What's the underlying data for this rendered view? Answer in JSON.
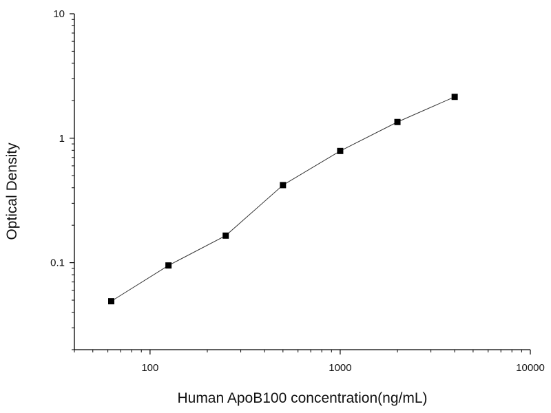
{
  "chart_data": {
    "type": "line",
    "title": "",
    "xlabel": "Human ApoB100   concentration(ng/mL)",
    "ylabel": "Optical  Density",
    "xscale": "log",
    "yscale": "log",
    "xlim": [
      40,
      10000
    ],
    "ylim": [
      0.02,
      10
    ],
    "x_ticks": [
      {
        "value": 100,
        "label": "100"
      },
      {
        "value": 1000,
        "label": "1000"
      },
      {
        "value": 10000,
        "label": "10000"
      }
    ],
    "y_ticks": [
      {
        "value": 0.1,
        "label": "0.1"
      },
      {
        "value": 1,
        "label": "1"
      },
      {
        "value": 10,
        "label": "10"
      }
    ],
    "grid": false,
    "legend": "none",
    "marker": "square",
    "line_color": "#333333",
    "marker_color": "#000000",
    "series": [
      {
        "x": [
          62.5,
          125,
          250,
          500,
          1000,
          2000,
          4000
        ],
        "y": [
          0.049,
          0.095,
          0.165,
          0.42,
          0.79,
          1.35,
          2.15
        ]
      }
    ]
  }
}
